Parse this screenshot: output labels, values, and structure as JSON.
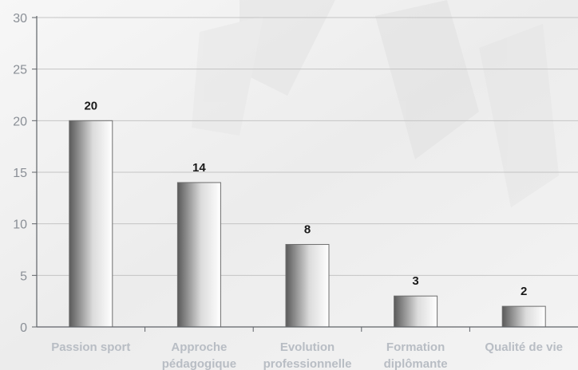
{
  "chart_data": {
    "type": "bar",
    "categories": [
      [
        "Passion sport"
      ],
      [
        "Approche",
        "pédagogique"
      ],
      [
        "Evolution",
        "professionnelle"
      ],
      [
        "Formation",
        "diplômante"
      ],
      [
        "Qualité de vie"
      ]
    ],
    "values": [
      20,
      14,
      8,
      3,
      2
    ],
    "data_labels": [
      "20",
      "14",
      "8",
      "3",
      "2"
    ],
    "ylim": [
      0,
      30
    ],
    "yticks": [
      0,
      5,
      10,
      15,
      20,
      25,
      30
    ],
    "grid": true,
    "legend": "none",
    "colors": {
      "bar_dark": "#5a5a5a",
      "bar_light": "#ffffff",
      "grid": "#c4c4c4",
      "axis": "#5f6368",
      "tick_text": "#8a8f96",
      "category_text": "#b8bdc4",
      "data_label_text": "#1a1a1a"
    }
  }
}
